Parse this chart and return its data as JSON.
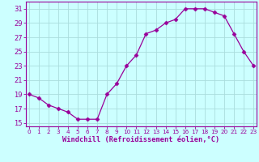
{
  "x": [
    0,
    1,
    2,
    3,
    4,
    5,
    6,
    7,
    8,
    9,
    10,
    11,
    12,
    13,
    14,
    15,
    16,
    17,
    18,
    19,
    20,
    21,
    22,
    23
  ],
  "y": [
    19,
    18.5,
    17.5,
    17,
    16.5,
    15.5,
    15.5,
    15.5,
    19,
    20.5,
    23,
    24.5,
    27.5,
    28,
    29,
    29.5,
    31,
    31,
    31,
    30.5,
    30,
    27.5,
    25,
    23
  ],
  "line_color": "#990099",
  "marker": "D",
  "marker_size": 2.5,
  "bg_color": "#ccffff",
  "grid_color": "#aadddd",
  "xlabel": "Windchill (Refroidissement éolien,°C)",
  "xlabel_color": "#990099",
  "tick_color": "#990099",
  "ylim": [
    14.5,
    32
  ],
  "yticks": [
    15,
    17,
    19,
    21,
    23,
    25,
    27,
    29,
    31
  ],
  "xticks": [
    0,
    1,
    2,
    3,
    4,
    5,
    6,
    7,
    8,
    9,
    10,
    11,
    12,
    13,
    14,
    15,
    16,
    17,
    18,
    19,
    20,
    21,
    22,
    23
  ],
  "xtick_labels": [
    "0",
    "1",
    "2",
    "3",
    "4",
    "5",
    "6",
    "7",
    "8",
    "9",
    "10",
    "11",
    "12",
    "13",
    "14",
    "15",
    "16",
    "17",
    "18",
    "19",
    "20",
    "21",
    "22",
    "23"
  ],
  "xlim": [
    -0.3,
    23.3
  ]
}
